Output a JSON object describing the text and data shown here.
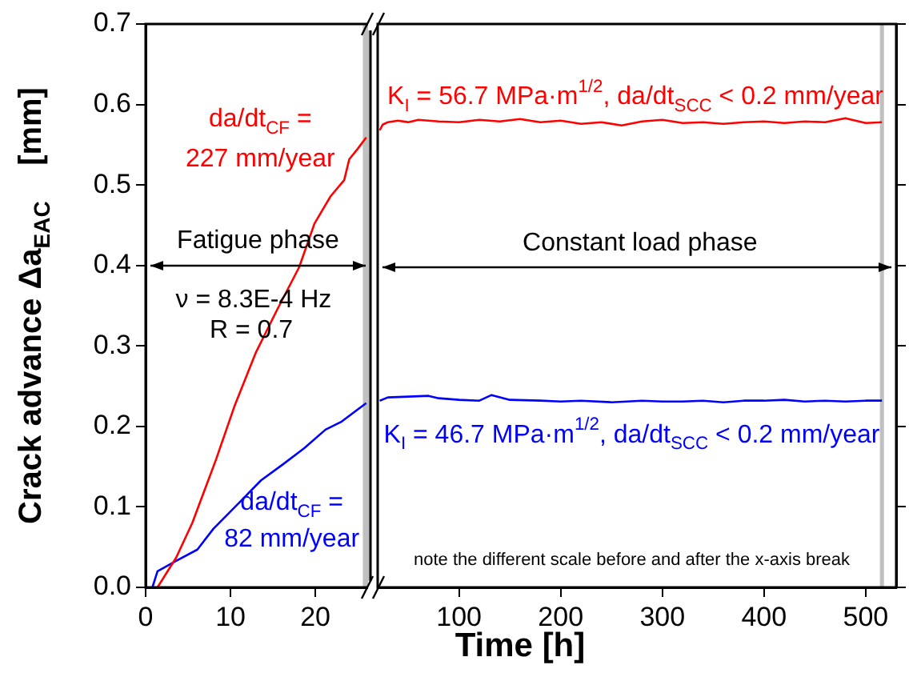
{
  "chart_data": [
    {
      "type": "line",
      "ylabel": "Crack advance Δa$_{EAC}$    [mm]",
      "xlim": [
        0,
        26.5
      ],
      "xticks": [
        0,
        10,
        20
      ],
      "ylim": [
        0,
        0.7
      ],
      "yticks": [
        {
          "value": 0,
          "label": "0.0"
        },
        0.1,
        0.2,
        0.3,
        0.4,
        0.5,
        0.6,
        0.7
      ],
      "marker": "none",
      "bands": [
        {
          "axis": "x",
          "from": 25.6,
          "to": 26.5,
          "color": "#c0c0c0"
        }
      ],
      "series": [
        {
          "color": "#ff0000",
          "x": [
            1.4,
            3.6,
            5.5,
            8.3,
            10.5,
            13.0,
            15.5,
            18.1,
            19.9,
            21.8,
            23.4,
            24.0,
            25.0,
            26.0
          ],
          "values": [
            0,
            0.037,
            0.08,
            0.159,
            0.226,
            0.292,
            0.345,
            0.398,
            0.452,
            0.486,
            0.506,
            0.532,
            0.545,
            0.559
          ]
        },
        {
          "color": "#0000ff",
          "x": [
            0.8,
            1.4,
            3.6,
            6.1,
            8.0,
            11.1,
            13.6,
            16.2,
            18.7,
            21.2,
            23.1,
            26.0
          ],
          "values": [
            0,
            0.02,
            0.033,
            0.047,
            0.073,
            0.106,
            0.133,
            0.153,
            0.173,
            0.196,
            0.206,
            0.229
          ]
        }
      ],
      "annotations": [
        "Fatigue phase",
        "ν = 8.3E-4 Hz",
        "R = 0.7",
        "da/dt$_{CF}$ =",
        "227 mm/year",
        "da/dt$_{CF}$ =",
        "82 mm/year"
      ]
    },
    {
      "type": "line",
      "xlabel": "Time [h]",
      "xlim": [
        20,
        530
      ],
      "xticks": [
        100,
        200,
        300,
        400,
        500
      ],
      "ylim": [
        0,
        0.7
      ],
      "yticks": [
        0,
        0.1,
        0.2,
        0.3,
        0.4,
        0.5,
        0.6,
        0.7
      ],
      "tick_labels": "x",
      "marker": "none",
      "bands": [
        {
          "axis": "x",
          "from": 514,
          "to": 518,
          "color": "#c0c0c0"
        }
      ],
      "series": [
        {
          "color": "#ff0000",
          "x": [
            22,
            25,
            30,
            40,
            50,
            60,
            80,
            100,
            120,
            140,
            160,
            180,
            200,
            220,
            240,
            260,
            280,
            300,
            320,
            340,
            360,
            380,
            400,
            420,
            440,
            460,
            480,
            500,
            516
          ],
          "values": [
            0.568,
            0.575,
            0.578,
            0.58,
            0.578,
            0.581,
            0.579,
            0.578,
            0.581,
            0.579,
            0.582,
            0.578,
            0.58,
            0.576,
            0.578,
            0.574,
            0.579,
            0.581,
            0.577,
            0.578,
            0.576,
            0.578,
            0.579,
            0.577,
            0.579,
            0.578,
            0.583,
            0.577,
            0.578
          ]
        },
        {
          "color": "#0000ff",
          "x": [
            22,
            30,
            50,
            70,
            80,
            100,
            120,
            132,
            150,
            180,
            200,
            220,
            250,
            280,
            300,
            320,
            340,
            360,
            380,
            400,
            420,
            440,
            460,
            480,
            500,
            516
          ],
          "values": [
            0.232,
            0.236,
            0.237,
            0.238,
            0.235,
            0.233,
            0.232,
            0.239,
            0.233,
            0.232,
            0.231,
            0.232,
            0.23,
            0.232,
            0.231,
            0.231,
            0.232,
            0.23,
            0.232,
            0.232,
            0.233,
            0.231,
            0.232,
            0.231,
            0.232,
            0.232
          ]
        }
      ],
      "annotations": [
        "Constant load phase",
        "note the different scale before and after the x-axis break",
        "K$_{I}$ = 56.7 MPa·m$^{1/2}$, da/dt$_{SCC}$ < 0.2 mm/year",
        "K$_{I}$ = 46.7 MPa·m$^{1/2}$, da/dt$_{SCC}$ < 0.2 mm/year"
      ]
    }
  ]
}
